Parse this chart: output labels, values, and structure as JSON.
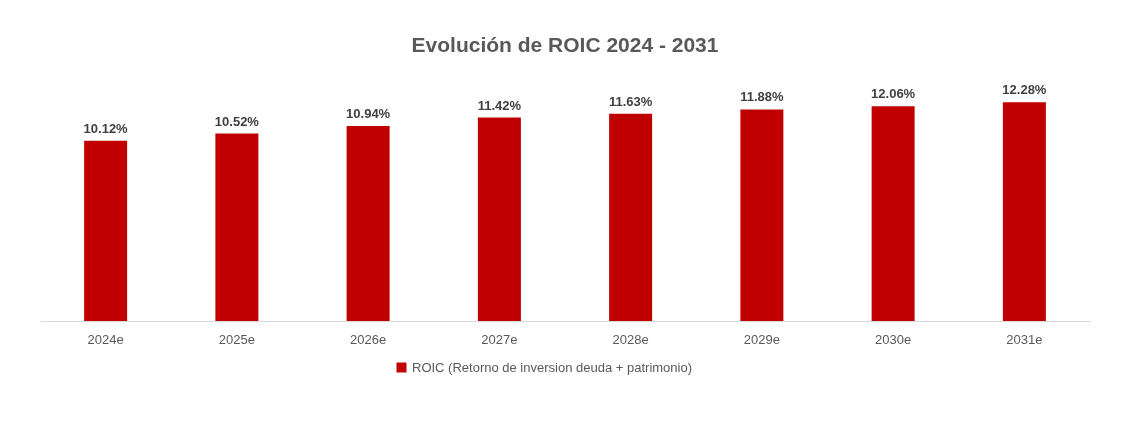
{
  "chart_data": {
    "type": "bar",
    "title": "Evolución de ROIC 2024 - 2031",
    "categories": [
      "2024e",
      "2025e",
      "2026e",
      "2027e",
      "2028e",
      "2029e",
      "2030e",
      "2031e"
    ],
    "series": [
      {
        "name": "ROIC  (Retorno de inversion deuda + patrimonio)",
        "color": "#c00000",
        "values": [
          10.12,
          10.52,
          10.94,
          11.42,
          11.63,
          11.88,
          12.06,
          12.28
        ],
        "value_labels": [
          "10.12%",
          "10.52%",
          "10.94%",
          "11.42%",
          "11.63%",
          "11.88%",
          "12.06%",
          "12.28%"
        ]
      }
    ],
    "grid": false,
    "legend": "bottom"
  }
}
